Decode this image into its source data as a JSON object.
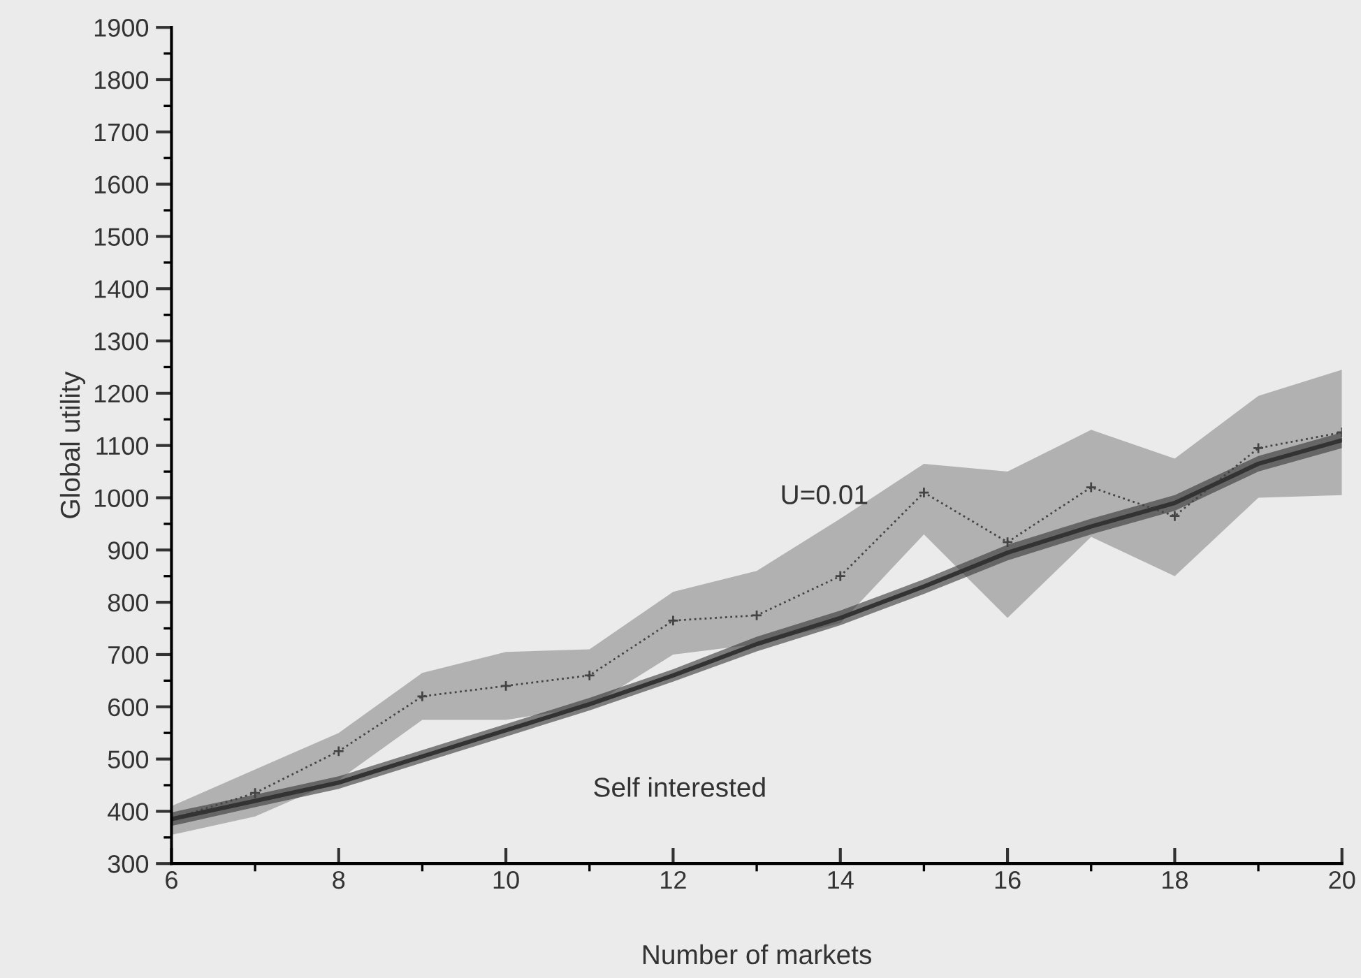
{
  "chart_data": {
    "type": "line",
    "xlabel": "Number of markets",
    "ylabel": "Global utility",
    "x": [
      6,
      7,
      8,
      9,
      10,
      11,
      12,
      13,
      14,
      15,
      16,
      17,
      18,
      19,
      20
    ],
    "xlim": [
      6,
      20
    ],
    "xticks": [
      6,
      8,
      10,
      12,
      14,
      16,
      18,
      20
    ],
    "ylim": [
      300,
      1900
    ],
    "yticks": [
      300,
      400,
      500,
      600,
      700,
      800,
      900,
      1000,
      1100,
      1200,
      1300,
      1400,
      1500,
      1600,
      1700,
      1800,
      1900
    ],
    "grid": false,
    "legend": false,
    "series": [
      {
        "name": "U=0.01",
        "color": "#444444",
        "marker": "cross",
        "line_style": "dotted",
        "values": [
          385,
          435,
          515,
          620,
          640,
          660,
          765,
          775,
          850,
          1010,
          915,
          1020,
          965,
          1095,
          1125
        ],
        "lower": [
          355,
          390,
          460,
          575,
          575,
          600,
          700,
          720,
          760,
          930,
          770,
          925,
          850,
          1000,
          1005
        ],
        "upper": [
          410,
          480,
          550,
          665,
          705,
          710,
          820,
          860,
          960,
          1065,
          1050,
          1130,
          1075,
          1195,
          1245
        ]
      },
      {
        "name": "Self interested",
        "color": "#333333",
        "marker": "none",
        "line_style": "solid",
        "values": [
          385,
          420,
          455,
          505,
          555,
          605,
          660,
          720,
          770,
          830,
          895,
          945,
          990,
          1065,
          1110
        ],
        "lower": [
          372,
          408,
          443,
          493,
          543,
          593,
          648,
          706,
          756,
          816,
          880,
          930,
          975,
          1050,
          1095
        ],
        "upper": [
          398,
          432,
          467,
          517,
          567,
          617,
          672,
          734,
          784,
          844,
          910,
          960,
          1005,
          1080,
          1125
        ]
      }
    ]
  }
}
